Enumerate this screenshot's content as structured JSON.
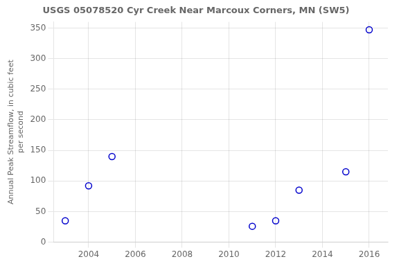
{
  "chart_data": {
    "type": "scatter",
    "title": "USGS 05078520 Cyr Creek Near Marcoux Corners, MN (SW5)",
    "ylabel": "Annual Peak Streamflow, in cubic feet\nper second",
    "x": [
      2003,
      2004,
      2005,
      2011,
      2012,
      2013,
      2015,
      2016
    ],
    "values": [
      35,
      92,
      140,
      26,
      35,
      85,
      115,
      347
    ],
    "color": "#0000cc",
    "marker": "circle",
    "xlim": [
      2002.5,
      2016.8
    ],
    "ylim": [
      0,
      360
    ],
    "xticks": [
      2004,
      2006,
      2008,
      2010,
      2012,
      2014,
      2016
    ],
    "yticks": [
      0,
      50,
      100,
      150,
      200,
      250,
      300,
      350
    ],
    "grid": true
  }
}
